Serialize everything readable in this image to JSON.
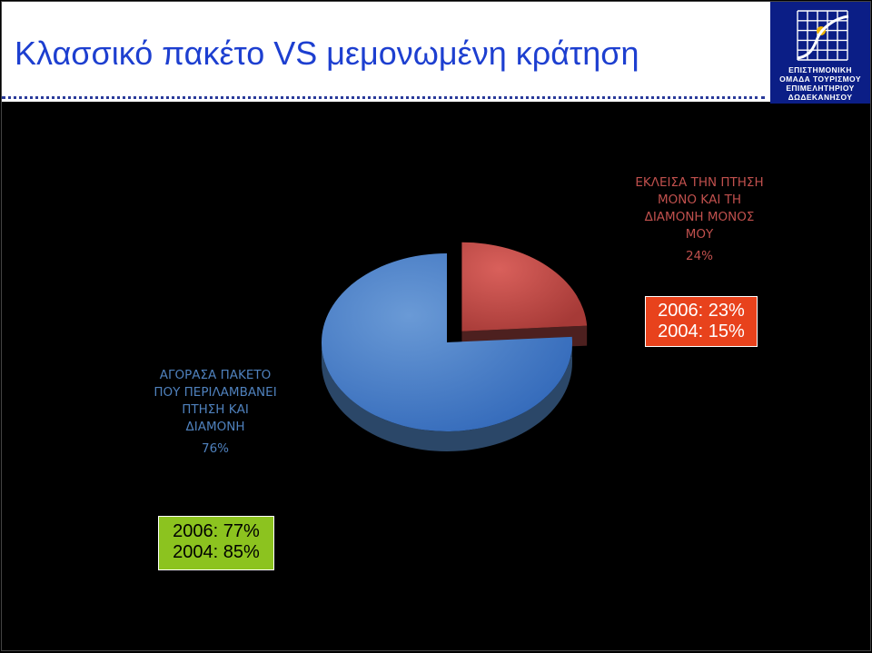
{
  "title": "Κλασσικό πακέτο VS μεμονωμένη κράτηση",
  "logo": {
    "lines": [
      "ΕΠΙΣΤΗΜΟΝΙΚΗ",
      "ΟΜΑΔΑ ΤΟΥΡΙΣΜΟΥ",
      "ΕΠΙΜΕΛΗΤΗΡΙΟΥ",
      "ΔΩΔΕΚΑΝΗΣΟΥ"
    ],
    "colors": {
      "background": "#0b1e86",
      "grid": "#ffffff",
      "curve": "#ffffff",
      "sun": "#f0b400"
    }
  },
  "chart_data": {
    "type": "pie",
    "style": "3d-exploded",
    "slices": [
      {
        "label_lines": [
          "ΕΚΛΕΙΣΑ ΤΗΝ ΠΤΗΣΗ",
          "ΜΟΝΟ ΚΑΙ ΤΗ",
          "ΔΙΑΜΟΝΗ ΜΟΝΟΣ",
          "ΜΟΥ"
        ],
        "value": 24,
        "value_label": "24%",
        "color": "#c0504d",
        "exploded": true
      },
      {
        "label_lines": [
          "ΑΓΟΡΑΣΑ ΠΑΚΕΤΟ",
          "ΠΟΥ ΠΕΡΙΛΑΜΒΑΝΕΙ",
          "ΠΤΗΣΗ ΚΑΙ",
          "ΔΙΑΜΟΝΗ"
        ],
        "value": 76,
        "value_label": "76%",
        "color": "#4f81bd",
        "exploded": false
      }
    ]
  },
  "callouts": {
    "red": {
      "lines": [
        "2006: 23%",
        "2004: 15%"
      ],
      "color": "#e8421c"
    },
    "green": {
      "lines": [
        "2006: 77%",
        "2004: 85%"
      ],
      "color": "#8cc31f"
    }
  }
}
